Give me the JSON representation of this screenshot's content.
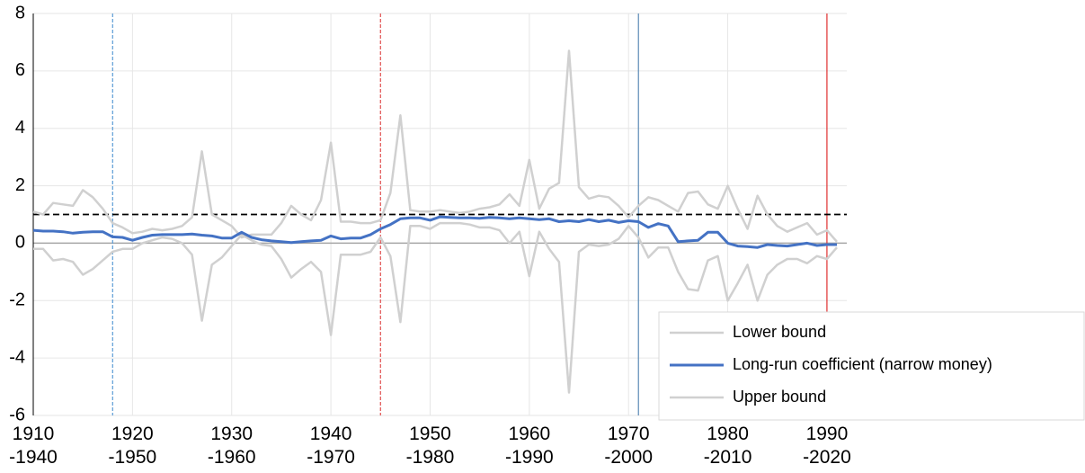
{
  "chart_data": {
    "type": "line",
    "x": [
      1910,
      1911,
      1912,
      1913,
      1914,
      1915,
      1916,
      1917,
      1918,
      1919,
      1920,
      1921,
      1922,
      1923,
      1924,
      1925,
      1926,
      1927,
      1928,
      1929,
      1930,
      1931,
      1932,
      1933,
      1934,
      1935,
      1936,
      1937,
      1938,
      1939,
      1940,
      1941,
      1942,
      1943,
      1944,
      1945,
      1946,
      1947,
      1948,
      1949,
      1950,
      1951,
      1952,
      1953,
      1954,
      1955,
      1956,
      1957,
      1958,
      1959,
      1960,
      1961,
      1962,
      1963,
      1964,
      1965,
      1966,
      1967,
      1968,
      1969,
      1970,
      1971,
      1972,
      1973,
      1974,
      1975,
      1976,
      1977,
      1978,
      1979,
      1980,
      1981,
      1982,
      1983,
      1984,
      1985,
      1986,
      1987,
      1988,
      1989,
      1990,
      1991
    ],
    "series": [
      {
        "name": "Lower bound",
        "color": "#d0d0d0",
        "values": [
          -0.2,
          -0.2,
          -0.6,
          -0.55,
          -0.65,
          -1.1,
          -0.9,
          -0.6,
          -0.3,
          -0.2,
          -0.2,
          0.0,
          0.1,
          0.2,
          0.15,
          0.0,
          -0.4,
          -2.7,
          -0.75,
          -0.5,
          -0.1,
          0.3,
          0.1,
          -0.05,
          -0.1,
          -0.55,
          -1.2,
          -0.9,
          -0.65,
          -1.0,
          -3.2,
          -0.4,
          -0.4,
          -0.4,
          -0.3,
          0.2,
          -0.45,
          -2.75,
          0.6,
          0.6,
          0.5,
          0.7,
          0.7,
          0.7,
          0.65,
          0.55,
          0.55,
          0.45,
          0.0,
          0.4,
          -1.15,
          0.4,
          -0.2,
          -0.65,
          -5.2,
          -0.3,
          -0.05,
          -0.1,
          -0.05,
          0.15,
          0.6,
          0.2,
          -0.5,
          -0.15,
          -0.15,
          -1.0,
          -1.6,
          -1.65,
          -0.6,
          -0.45,
          -2.0,
          -1.4,
          -0.75,
          -2.0,
          -1.1,
          -0.75,
          -0.55,
          -0.55,
          -0.7,
          -0.45,
          -0.55,
          -0.15
        ]
      },
      {
        "name": "Long-run coefficient (narrow money)",
        "color": "#4472c4",
        "values": [
          0.45,
          0.42,
          0.42,
          0.4,
          0.35,
          0.38,
          0.4,
          0.4,
          0.22,
          0.2,
          0.1,
          0.2,
          0.28,
          0.3,
          0.3,
          0.3,
          0.32,
          0.28,
          0.25,
          0.18,
          0.18,
          0.38,
          0.2,
          0.12,
          0.08,
          0.05,
          0.02,
          0.05,
          0.08,
          0.1,
          0.25,
          0.15,
          0.18,
          0.18,
          0.3,
          0.5,
          0.65,
          0.85,
          0.88,
          0.88,
          0.8,
          0.92,
          0.9,
          0.88,
          0.88,
          0.87,
          0.9,
          0.88,
          0.85,
          0.88,
          0.85,
          0.82,
          0.85,
          0.75,
          0.78,
          0.75,
          0.82,
          0.75,
          0.8,
          0.72,
          0.78,
          0.75,
          0.55,
          0.68,
          0.6,
          0.05,
          0.08,
          0.1,
          0.38,
          0.38,
          0.0,
          -0.1,
          -0.12,
          -0.15,
          -0.05,
          -0.08,
          -0.1,
          -0.05,
          0.0,
          -0.08,
          -0.05,
          -0.05
        ]
      },
      {
        "name": "Upper bound",
        "color": "#d0d0d0",
        "values": [
          1.1,
          1.0,
          1.4,
          1.35,
          1.3,
          1.85,
          1.6,
          1.2,
          0.7,
          0.55,
          0.35,
          0.4,
          0.5,
          0.45,
          0.5,
          0.6,
          0.9,
          3.2,
          1.0,
          0.8,
          0.6,
          0.2,
          0.3,
          0.3,
          0.3,
          0.7,
          1.3,
          1.0,
          0.8,
          1.5,
          3.5,
          0.75,
          0.75,
          0.7,
          0.7,
          0.8,
          1.75,
          4.45,
          1.15,
          1.1,
          1.1,
          1.15,
          1.1,
          1.05,
          1.1,
          1.2,
          1.25,
          1.35,
          1.7,
          1.3,
          2.9,
          1.2,
          1.9,
          2.1,
          6.7,
          1.95,
          1.55,
          1.65,
          1.6,
          1.3,
          0.9,
          1.3,
          1.6,
          1.5,
          1.3,
          1.1,
          1.75,
          1.8,
          1.35,
          1.2,
          2.0,
          1.2,
          0.5,
          1.65,
          1.0,
          0.6,
          0.4,
          0.55,
          0.7,
          0.3,
          0.45,
          0.05
        ]
      }
    ],
    "xlim": [
      1910,
      1992
    ],
    "xticks": [
      {
        "value": 1910,
        "label": "1910\n-1940"
      },
      {
        "value": 1920,
        "label": "1920\n-1950"
      },
      {
        "value": 1930,
        "label": "1930\n-1960"
      },
      {
        "value": 1940,
        "label": "1940\n-1970"
      },
      {
        "value": 1950,
        "label": "1950\n-1980"
      },
      {
        "value": 1960,
        "label": "1960\n-1990"
      },
      {
        "value": 1970,
        "label": "1970\n-2000"
      },
      {
        "value": 1980,
        "label": "1980\n-2010"
      },
      {
        "value": 1990,
        "label": "1990\n-2020"
      }
    ],
    "ylim": [
      -6,
      8
    ],
    "yticks": [
      -6,
      -4,
      -2,
      0,
      2,
      4,
      6,
      8
    ],
    "grid": true,
    "vlines": [
      {
        "x": 1918,
        "color": "#5b9bd5",
        "dashed": true
      },
      {
        "x": 1945,
        "color": "#e05050",
        "dashed": true
      },
      {
        "x": 1971,
        "color": "#5b8bb5",
        "dashed": false
      },
      {
        "x": 1990,
        "color": "#e03030",
        "dashed": false
      }
    ],
    "hline": {
      "y": 1,
      "color": "#000000",
      "dashed": true
    },
    "legend": "lower-right"
  }
}
